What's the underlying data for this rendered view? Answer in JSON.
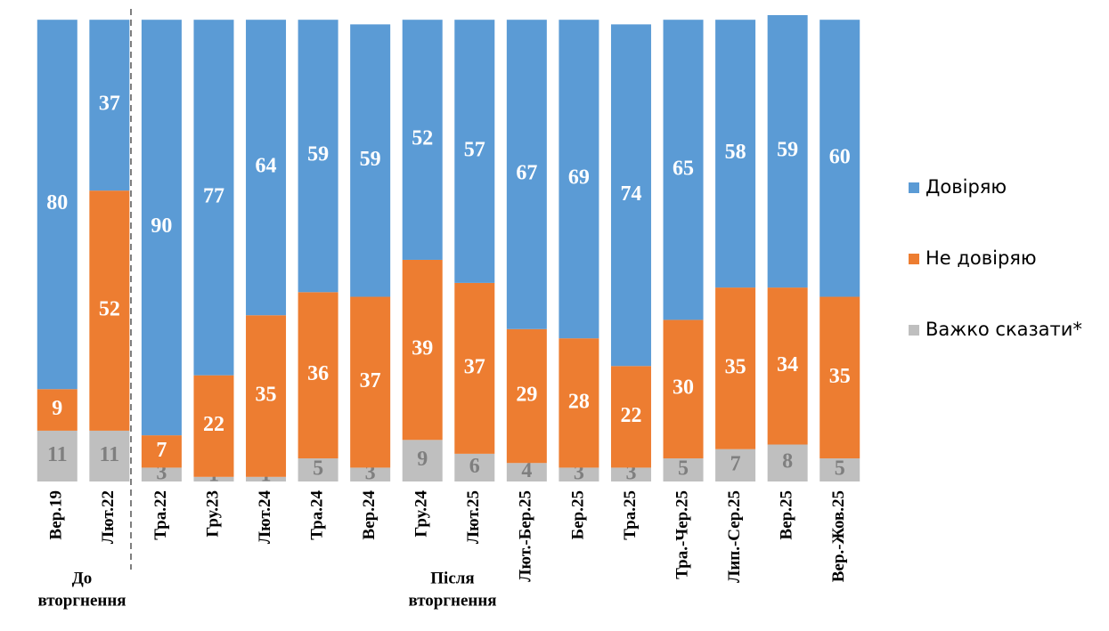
{
  "chart_data": {
    "type": "stacked_bar",
    "categories": [
      "Вер.19",
      "Лют.22",
      "Тра.22",
      "Гру.23",
      "Лют.24",
      "Тра.24",
      "Вер.24",
      "Гру.24",
      "Лют.25",
      "Лют.-Бер.25",
      "Бер.25",
      "Тра.25",
      "Тра.-Чер.25",
      "Лип.-Сер.25",
      "Вер.25",
      "Вер.-Жов.25"
    ],
    "series": [
      {
        "name": "Довіряю",
        "color": "#5b9bd5",
        "values": [
          80,
          37,
          90,
          77,
          64,
          59,
          59,
          52,
          57,
          67,
          69,
          74,
          65,
          58,
          59,
          60
        ]
      },
      {
        "name": "Не довіряю",
        "color": "#ed7d31",
        "values": [
          9,
          52,
          7,
          22,
          35,
          36,
          37,
          39,
          37,
          29,
          28,
          22,
          30,
          35,
          34,
          35
        ]
      },
      {
        "name": "Важко сказати*",
        "color": "#bfbfbf",
        "values": [
          11,
          11,
          3,
          1,
          1,
          5,
          3,
          9,
          6,
          4,
          3,
          3,
          5,
          7,
          8,
          5
        ]
      }
    ],
    "annotations": [
      [
        "До",
        "вторгнення"
      ],
      [
        "Після",
        "вторгнення"
      ]
    ],
    "legend": "right"
  }
}
